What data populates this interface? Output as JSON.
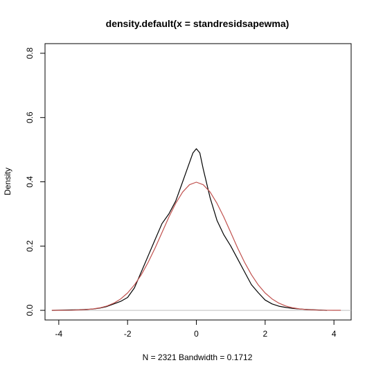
{
  "chart_data": {
    "type": "line",
    "title": "density.default(x = standresidsapewma)",
    "xlabel": "N = 2321   Bandwidth = 0.1712",
    "ylabel": "Density",
    "xlim": [
      -4.4,
      4.5
    ],
    "ylim": [
      -0.03,
      0.83
    ],
    "x_ticks": [
      -4,
      -2,
      0,
      2,
      4
    ],
    "y_ticks": [
      0.0,
      0.2,
      0.4,
      0.6,
      0.8
    ],
    "x_tick_labels": [
      "-4",
      "-2",
      "0",
      "2",
      "4"
    ],
    "y_tick_labels": [
      "0.0",
      "0.2",
      "0.4",
      "0.6",
      "0.8"
    ],
    "baseline": 0,
    "baseline_color": "#bebebe",
    "series": [
      {
        "color": "#000000",
        "x": [
          -4.2,
          -3.8,
          -3.4,
          -3.0,
          -2.8,
          -2.6,
          -2.4,
          -2.2,
          -2.0,
          -1.8,
          -1.6,
          -1.4,
          -1.2,
          -1.0,
          -0.8,
          -0.6,
          -0.4,
          -0.2,
          -0.1,
          0.0,
          0.1,
          0.2,
          0.4,
          0.6,
          0.8,
          1.0,
          1.2,
          1.4,
          1.6,
          1.8,
          2.0,
          2.2,
          2.4,
          2.6,
          2.8,
          3.0,
          3.4,
          3.8
        ],
        "y": [
          0.0,
          0.001,
          0.002,
          0.004,
          0.007,
          0.012,
          0.02,
          0.028,
          0.04,
          0.07,
          0.12,
          0.17,
          0.22,
          0.27,
          0.3,
          0.34,
          0.4,
          0.46,
          0.49,
          0.503,
          0.49,
          0.44,
          0.35,
          0.28,
          0.235,
          0.2,
          0.16,
          0.12,
          0.08,
          0.055,
          0.032,
          0.02,
          0.013,
          0.009,
          0.006,
          0.004,
          0.002,
          0.0
        ]
      },
      {
        "color": "#c0504d",
        "x": [
          -4.2,
          -4.0,
          -3.6,
          -3.2,
          -3.0,
          -2.8,
          -2.6,
          -2.4,
          -2.2,
          -2.0,
          -1.8,
          -1.6,
          -1.4,
          -1.2,
          -1.0,
          -0.8,
          -0.6,
          -0.4,
          -0.2,
          0.0,
          0.2,
          0.4,
          0.6,
          0.8,
          1.0,
          1.2,
          1.4,
          1.6,
          1.8,
          2.0,
          2.2,
          2.4,
          2.6,
          2.8,
          3.0,
          3.2,
          3.6,
          4.0,
          4.2
        ],
        "y": [
          0.0001,
          0.0001,
          0.0006,
          0.0024,
          0.0044,
          0.0079,
          0.0136,
          0.0224,
          0.0355,
          0.054,
          0.079,
          0.111,
          0.15,
          0.194,
          0.242,
          0.29,
          0.333,
          0.368,
          0.391,
          0.399,
          0.391,
          0.368,
          0.333,
          0.29,
          0.242,
          0.194,
          0.15,
          0.111,
          0.079,
          0.054,
          0.0355,
          0.0224,
          0.0136,
          0.0079,
          0.0044,
          0.0024,
          0.0006,
          0.0001,
          0.0001
        ]
      }
    ]
  }
}
